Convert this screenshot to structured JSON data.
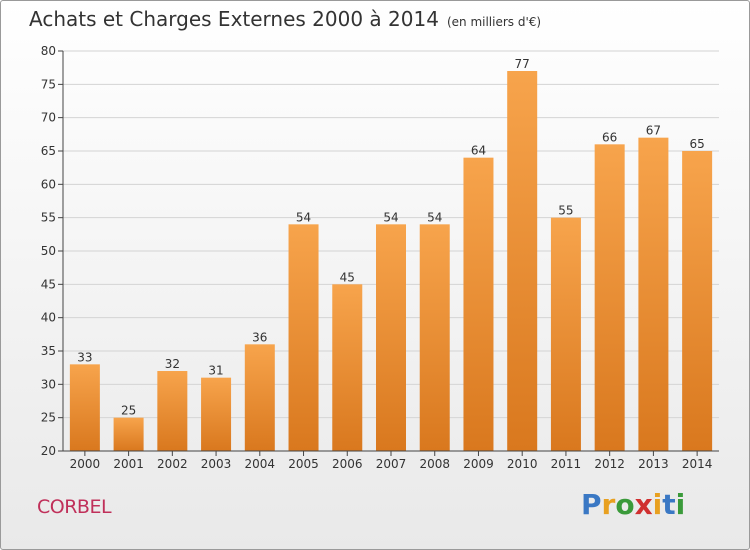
{
  "header": {
    "title": "Achats et Charges Externes 2000 à 2014",
    "subtitle": "(en milliers d'€)"
  },
  "footer": {
    "commune": "CORBEL",
    "brand_letters": [
      "P",
      "r",
      "o",
      "x",
      "i",
      "t",
      "i"
    ],
    "brand_colors": [
      "#3a78c4",
      "#e8a020",
      "#3a9a3a",
      "#d03030",
      "#e8a020",
      "#3a78c4",
      "#3a9a3a"
    ]
  },
  "colors": {
    "bar_light": "#f7a44c",
    "bar_dark": "#d9781e",
    "grid": "#d4d4d4",
    "axis": "#444444"
  },
  "chart_data": {
    "type": "bar",
    "categories": [
      "2000",
      "2001",
      "2002",
      "2003",
      "2004",
      "2005",
      "2006",
      "2007",
      "2008",
      "2009",
      "2010",
      "2011",
      "2012",
      "2013",
      "2014"
    ],
    "values": [
      33,
      25,
      32,
      31,
      36,
      54,
      45,
      54,
      54,
      64,
      77,
      55,
      66,
      67,
      65
    ],
    "ylim": [
      20,
      80
    ],
    "yticks": [
      "20",
      "25",
      "30",
      "35",
      "40",
      "45",
      "50",
      "55",
      "60",
      "65",
      "70",
      "75",
      "80"
    ],
    "grid": true,
    "legend": "none"
  }
}
